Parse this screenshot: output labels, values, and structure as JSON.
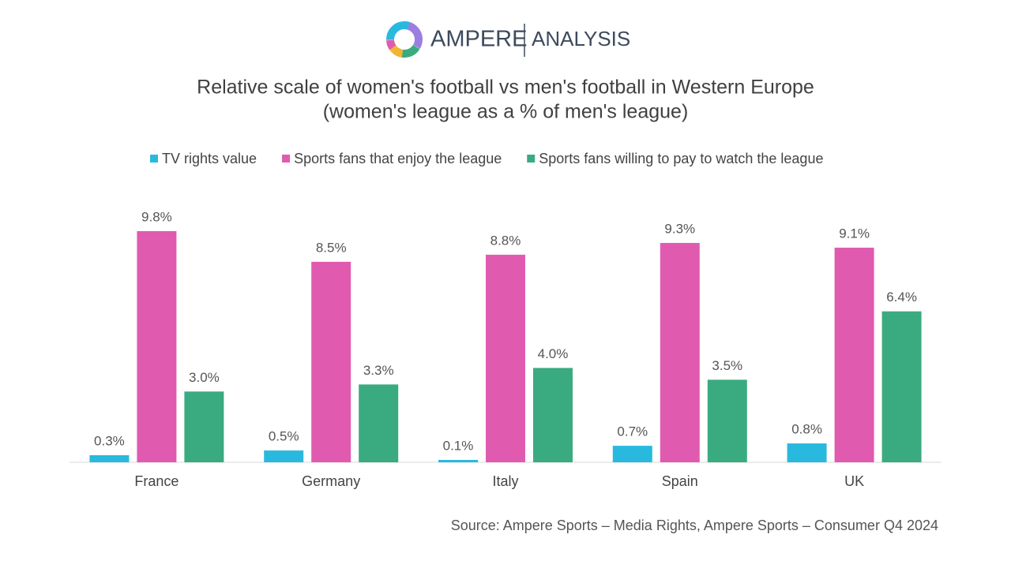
{
  "logo": {
    "primary": "AMPERE",
    "secondary": "ANALYSIS"
  },
  "chart_data": {
    "type": "bar",
    "title": "Relative scale of women's football vs men's football in Western Europe",
    "subtitle": "(women's league as a % of men's league)",
    "source": "Source: Ampere Sports – Media Rights, Ampere Sports – Consumer Q4 2024",
    "categories": [
      "France",
      "Germany",
      "Italy",
      "Spain",
      "UK"
    ],
    "series": [
      {
        "name": "TV rights value",
        "color": "#29b9de",
        "values": [
          0.3,
          0.5,
          0.1,
          0.7,
          0.8
        ],
        "value_labels": [
          "0.3%",
          "0.5%",
          "0.1%",
          "0.7%",
          "0.8%"
        ]
      },
      {
        "name": "Sports fans that enjoy the league",
        "color": "#e05bb0",
        "values": [
          9.8,
          8.5,
          8.8,
          9.3,
          9.1
        ],
        "value_labels": [
          "9.8%",
          "8.5%",
          "8.8%",
          "9.3%",
          "9.1%"
        ]
      },
      {
        "name": "Sports fans willing to pay to watch the league",
        "color": "#3aab80",
        "values": [
          3.0,
          3.3,
          4.0,
          3.5,
          6.4
        ],
        "value_labels": [
          "3.0%",
          "3.3%",
          "4.0%",
          "3.5%",
          "6.4%"
        ]
      }
    ],
    "legend": "top"
  }
}
